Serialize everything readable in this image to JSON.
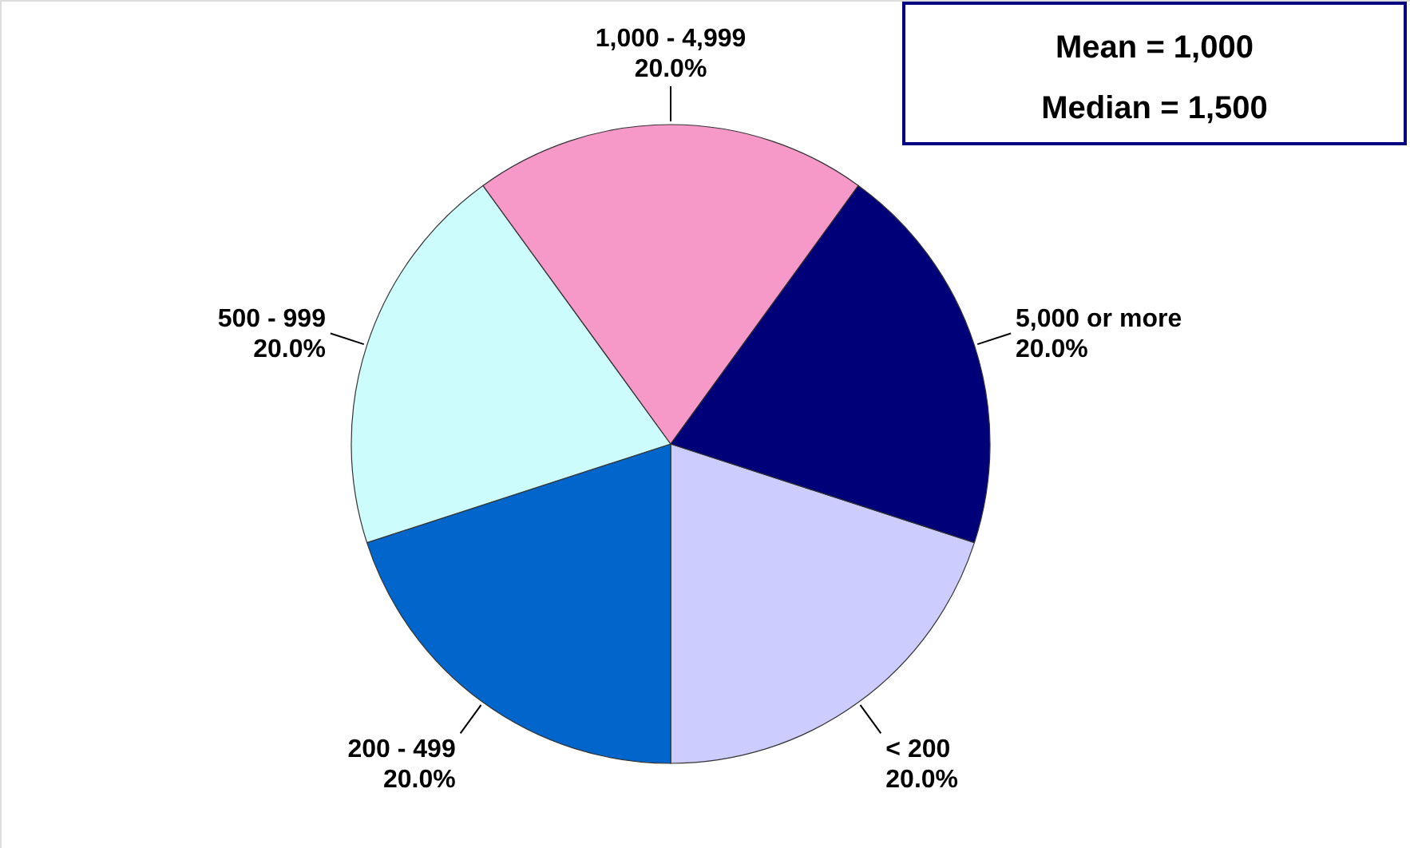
{
  "chart_data": {
    "type": "pie",
    "categories": [
      "< 200",
      "200 - 499",
      "500 - 999",
      "1,000 - 4,999",
      "5,000 or more"
    ],
    "values": [
      20,
      20,
      20,
      20,
      20
    ],
    "colors": [
      "#ccccff",
      "#0066cc",
      "#ccfcfc",
      "#f799c8",
      "#000078"
    ],
    "value_labels": [
      "20.0%",
      "20.0%",
      "20.0%",
      "20.0%",
      "20.0%"
    ],
    "annotations": [
      "Mean = 1,000",
      "Median = 1,500"
    ]
  }
}
